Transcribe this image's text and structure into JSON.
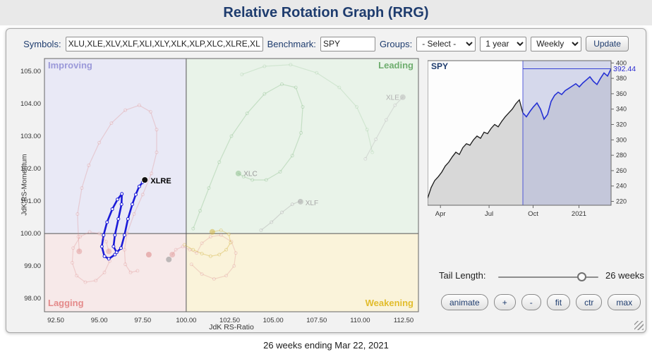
{
  "header": {
    "title": "Relative Rotation Graph (RRG)"
  },
  "toolbar": {
    "symbols_label": "Symbols:",
    "symbols_value": "XLU,XLE,XLV,XLF,XLI,XLY,XLK,XLP,XLC,XLRE,XL",
    "benchmark_label": "Benchmark:",
    "benchmark_value": "SPY",
    "groups_label": "Groups:",
    "groups_selected": "- Select -",
    "period_selected": "1 year",
    "frequency_selected": "Weekly",
    "update_label": "Update"
  },
  "rrg_panel": {
    "ylabel": "JdK RS-Momentum",
    "xlabel": "JdK RS-Ratio",
    "quadrant_labels": {
      "improving": "Improving",
      "leading": "Leading",
      "lagging": "Lagging",
      "weakening": "Weakening"
    }
  },
  "spy_panel": {
    "symbol": "SPY",
    "last_value": "392.44"
  },
  "controls": {
    "tail_label": "Tail Length:",
    "tail_value": "26 weeks",
    "buttons": [
      "animate",
      "+",
      "-",
      "fit",
      "ctr",
      "max"
    ]
  },
  "footer": {
    "caption": "26 weeks ending Mar 22, 2021"
  },
  "chart_data": {
    "rrg": {
      "type": "scatter",
      "title": "Relative Rotation Graph",
      "xlabel": "JdK RS-Ratio",
      "ylabel": "JdK RS-Momentum",
      "xlim": [
        91.85,
        113.35
      ],
      "ylim": [
        97.59,
        105.39
      ],
      "x_ticks": [
        92.5,
        95,
        97.5,
        100,
        102.5,
        105,
        107.5,
        110,
        112.5
      ],
      "y_ticks": [
        98,
        99,
        100,
        101,
        102,
        103,
        104,
        105
      ],
      "center": [
        100,
        100
      ],
      "quadrant_colors": {
        "improving": "#e9e9f6",
        "leading": "#e9f3e9",
        "lagging": "#f7e9e9",
        "weakening": "#faf3da"
      },
      "series": [
        {
          "name": "XLRE",
          "color": "#1b1bd8",
          "width": 2.6,
          "opacity": 1,
          "head": "solid",
          "head_color": "#111111",
          "points": [
            [
              95.9,
              99.35
            ],
            [
              95.55,
              99.22
            ],
            [
              95.3,
              99.3
            ],
            [
              95.15,
              99.6
            ],
            [
              95.25,
              99.95
            ],
            [
              95.45,
              100.35
            ],
            [
              95.75,
              100.75
            ],
            [
              96.05,
              101.05
            ],
            [
              96.3,
              101.22
            ],
            [
              96.28,
              100.9
            ],
            [
              96.1,
              100.45
            ],
            [
              95.9,
              99.95
            ],
            [
              95.82,
              99.6
            ],
            [
              96.0,
              99.42
            ],
            [
              96.25,
              99.55
            ],
            [
              96.45,
              99.95
            ],
            [
              96.65,
              100.45
            ],
            [
              96.9,
              100.9
            ],
            [
              97.1,
              101.2
            ],
            [
              97.3,
              101.45
            ],
            [
              97.5,
              101.58
            ],
            [
              97.62,
              101.65
            ]
          ]
        },
        {
          "name": "unlabeled-pink-large",
          "color": "#dc8a8a",
          "width": 1.2,
          "opacity": 0.32,
          "head": "big",
          "points": [
            [
              97.2,
              98.85
            ],
            [
              96.8,
              98.8
            ],
            [
              96.5,
              99.05
            ],
            [
              96.45,
              99.5
            ],
            [
              96.6,
              100.0
            ],
            [
              97.0,
              100.6
            ],
            [
              97.5,
              101.2
            ],
            [
              98.0,
              101.85
            ],
            [
              98.3,
              102.5
            ],
            [
              98.3,
              103.2
            ],
            [
              97.95,
              103.75
            ],
            [
              97.3,
              103.95
            ],
            [
              96.5,
              103.8
            ],
            [
              95.7,
              103.4
            ],
            [
              95.0,
              102.8
            ],
            [
              94.4,
              102.1
            ],
            [
              94.0,
              101.4
            ],
            [
              93.75,
              100.6
            ],
            [
              93.8,
              99.9
            ],
            [
              93.85,
              99.45
            ]
          ]
        },
        {
          "name": "unlabeled-pink-small",
          "color": "#dc8a8a",
          "width": 1.2,
          "opacity": 0.3,
          "head": "big",
          "points": [
            [
              95.6,
              99.15
            ],
            [
              95.3,
              98.8
            ],
            [
              94.8,
              98.55
            ],
            [
              94.2,
              98.5
            ],
            [
              93.7,
              98.7
            ],
            [
              93.45,
              99.1
            ],
            [
              93.5,
              99.55
            ],
            [
              93.9,
              99.9
            ],
            [
              94.45,
              100.05
            ],
            [
              95.0,
              100.0
            ],
            [
              95.4,
              99.75
            ],
            [
              95.55,
              99.45
            ]
          ]
        },
        {
          "name": "unlabeled-pink-center",
          "color": "#dc8a8a",
          "width": 1.2,
          "opacity": 0.3,
          "head": "big",
          "points": [
            [
              100.3,
              99.05
            ],
            [
              100.9,
              98.75
            ],
            [
              101.6,
              98.6
            ],
            [
              102.3,
              98.7
            ],
            [
              102.75,
              99.0
            ],
            [
              102.85,
              99.4
            ],
            [
              102.6,
              99.75
            ],
            [
              102.0,
              99.95
            ],
            [
              101.4,
              99.9
            ],
            [
              100.9,
              99.7
            ],
            [
              100.6,
              99.4
            ],
            [
              100.2,
              99.5
            ],
            [
              99.8,
              99.6
            ],
            [
              99.4,
              99.5
            ],
            [
              99.2,
              99.35
            ]
          ]
        },
        {
          "name": "unlabeled-pink-dot",
          "color": "#dc8a8a",
          "width": 1,
          "opacity": 0.45,
          "head": "big",
          "points": [
            [
              97.85,
              99.35
            ]
          ]
        },
        {
          "name": "unlabeled-gray-dot",
          "color": "#9a9a9a",
          "width": 1,
          "opacity": 0.5,
          "head": "big",
          "points": [
            [
              99.0,
              99.2
            ]
          ]
        },
        {
          "name": "XLC",
          "color": "#79b479",
          "width": 1.2,
          "opacity": 0.32,
          "head": "big",
          "points": [
            [
              100.4,
              100.15
            ],
            [
              100.8,
              100.7
            ],
            [
              101.3,
              101.4
            ],
            [
              101.9,
              102.2
            ],
            [
              102.6,
              103.0
            ],
            [
              103.5,
              103.7
            ],
            [
              104.5,
              104.3
            ],
            [
              105.5,
              104.6
            ],
            [
              106.3,
              104.5
            ],
            [
              106.7,
              103.9
            ],
            [
              106.6,
              103.1
            ],
            [
              106.1,
              102.4
            ],
            [
              105.4,
              101.9
            ],
            [
              104.6,
              101.65
            ],
            [
              103.8,
              101.65
            ],
            [
              103.3,
              101.75
            ],
            [
              103.0,
              101.85
            ]
          ]
        },
        {
          "name": "unlabeled-green-arc",
          "color": "#8cbf8c",
          "width": 1.2,
          "opacity": 0.25,
          "head": "none",
          "points": [
            [
              103.2,
              104.9
            ],
            [
              104.5,
              105.15
            ],
            [
              106.0,
              105.2
            ],
            [
              107.5,
              104.95
            ],
            [
              108.8,
              104.5
            ],
            [
              109.8,
              103.9
            ],
            [
              110.4,
              103.2
            ],
            [
              110.7,
              102.5
            ]
          ]
        },
        {
          "name": "XLF",
          "color": "#a8a8a8",
          "width": 1.2,
          "opacity": 0.4,
          "head": "big",
          "points": [
            [
              104.3,
              100.1
            ],
            [
              104.9,
              100.35
            ],
            [
              105.5,
              100.65
            ],
            [
              106.1,
              100.9
            ],
            [
              106.55,
              101.0
            ],
            [
              106.57,
              100.98
            ]
          ]
        },
        {
          "name": "XLE",
          "color": "#b8b8b8",
          "width": 1.2,
          "opacity": 0.4,
          "head": "big",
          "points": [
            [
              110.3,
              102.3
            ],
            [
              110.9,
              102.9
            ],
            [
              111.5,
              103.5
            ],
            [
              112.0,
              103.95
            ],
            [
              112.45,
              104.2
            ]
          ]
        },
        {
          "name": "unlabeled-yellow",
          "color": "#d2b23e",
          "width": 1.2,
          "opacity": 0.4,
          "head": "big",
          "points": [
            [
              99.9,
              99.65
            ],
            [
              100.4,
              99.5
            ],
            [
              100.9,
              99.38
            ],
            [
              101.4,
              99.3
            ],
            [
              101.9,
              99.35
            ],
            [
              102.3,
              99.5
            ],
            [
              102.55,
              99.72
            ],
            [
              102.45,
              99.98
            ],
            [
              102.0,
              100.1
            ],
            [
              101.5,
              100.05
            ]
          ]
        }
      ],
      "labels": [
        {
          "text": "XLRE",
          "x": 97.95,
          "y": 101.62,
          "color": "#000000",
          "bold": true,
          "size": 11,
          "anchor": "start"
        },
        {
          "text": "XLC",
          "x": 103.3,
          "y": 101.85,
          "color": "#999999",
          "size": 10,
          "anchor": "start"
        },
        {
          "text": "XLF",
          "x": 106.85,
          "y": 100.95,
          "color": "#a8a8a8",
          "size": 10,
          "anchor": "start"
        },
        {
          "text": "XLE",
          "x": 112.25,
          "y": 104.2,
          "color": "#b0b0b0",
          "size": 10,
          "anchor": "end"
        }
      ]
    },
    "spy": {
      "type": "line",
      "symbol": "SPY",
      "ylim": [
        215,
        403
      ],
      "y_ticks": [
        220,
        240,
        260,
        280,
        300,
        320,
        340,
        360,
        380,
        400
      ],
      "x_ticks": [
        {
          "label": "Apr",
          "f": 0.07
        },
        {
          "label": "Jul",
          "f": 0.335
        },
        {
          "label": "Oct",
          "f": 0.575
        },
        {
          "label": "2021",
          "f": 0.825
        }
      ],
      "values": [
        224,
        238,
        247,
        252,
        258,
        266,
        271,
        278,
        284,
        281,
        290,
        295,
        293,
        300,
        305,
        302,
        310,
        308,
        315,
        320,
        317,
        324,
        330,
        335,
        340,
        347,
        352,
        335,
        330,
        337,
        343,
        348,
        340,
        327,
        333,
        350,
        358,
        362,
        359,
        364,
        367,
        370,
        373,
        369,
        374,
        378,
        382,
        376,
        372,
        380,
        387,
        383,
        392.44
      ],
      "highlight_start_index": 27,
      "last_value": 392.44,
      "colors": {
        "line": "#1a1a1a",
        "highlight_line": "#2531d4",
        "area": "#d8d8d8",
        "highlight_bg": "#b4badc"
      }
    }
  }
}
